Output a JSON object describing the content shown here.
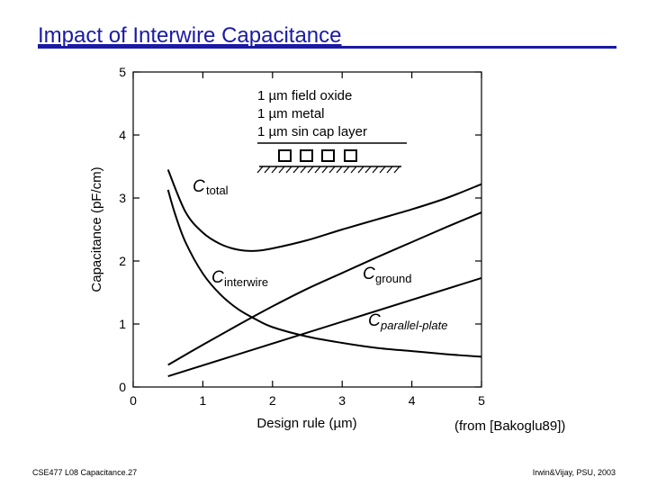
{
  "slide": {
    "title": "Impact of Interwire Capacitance",
    "source": "(from [Bakoglu89])",
    "footer_left": "CSE477 L08 Capacitance.27",
    "footer_right": "Irwin&Vijay, PSU, 2003"
  },
  "chart_data": {
    "type": "line",
    "xlabel": "Design rule (µm)",
    "ylabel": "Capacitance (pF/cm)",
    "xlim": [
      0,
      5
    ],
    "ylim": [
      0,
      5
    ],
    "xticks": [
      0,
      1,
      2,
      3,
      4,
      5
    ],
    "yticks": [
      0,
      1,
      2,
      3,
      4,
      5
    ],
    "grid": false,
    "legend_box": [
      "1 µm field oxide",
      "1 µm metal",
      "1 µm sin cap layer"
    ],
    "series": [
      {
        "name": "C_total",
        "label_main": "C",
        "label_sub": "total",
        "x": [
          0.5,
          0.75,
          1.0,
          1.25,
          1.5,
          1.75,
          2.0,
          2.5,
          3.0,
          3.5,
          4.0,
          4.5,
          5.0
        ],
        "y": [
          3.45,
          2.78,
          2.45,
          2.27,
          2.18,
          2.16,
          2.2,
          2.33,
          2.5,
          2.66,
          2.82,
          3.0,
          3.22
        ]
      },
      {
        "name": "C_interwire",
        "label_main": "C",
        "label_sub": "interwire",
        "x": [
          0.5,
          0.6,
          0.75,
          1.0,
          1.25,
          1.5,
          1.75,
          2.0,
          2.5,
          3.0,
          3.5,
          4.0,
          4.5,
          5.0
        ],
        "y": [
          3.13,
          2.75,
          2.3,
          1.8,
          1.47,
          1.24,
          1.08,
          0.95,
          0.8,
          0.7,
          0.62,
          0.57,
          0.52,
          0.48
        ]
      },
      {
        "name": "C_ground",
        "label_main": "C",
        "label_sub": "ground",
        "x": [
          0.5,
          1.0,
          1.5,
          2.0,
          2.5,
          3.0,
          3.5,
          4.0,
          4.5,
          5.0
        ],
        "y": [
          0.35,
          0.67,
          0.98,
          1.28,
          1.56,
          1.81,
          2.06,
          2.3,
          2.54,
          2.77
        ]
      },
      {
        "name": "C_parallel-plate",
        "label_main": "C",
        "label_sub": "parallel-plate",
        "x": [
          0.5,
          5.0
        ],
        "y": [
          0.17,
          1.73
        ]
      }
    ]
  }
}
